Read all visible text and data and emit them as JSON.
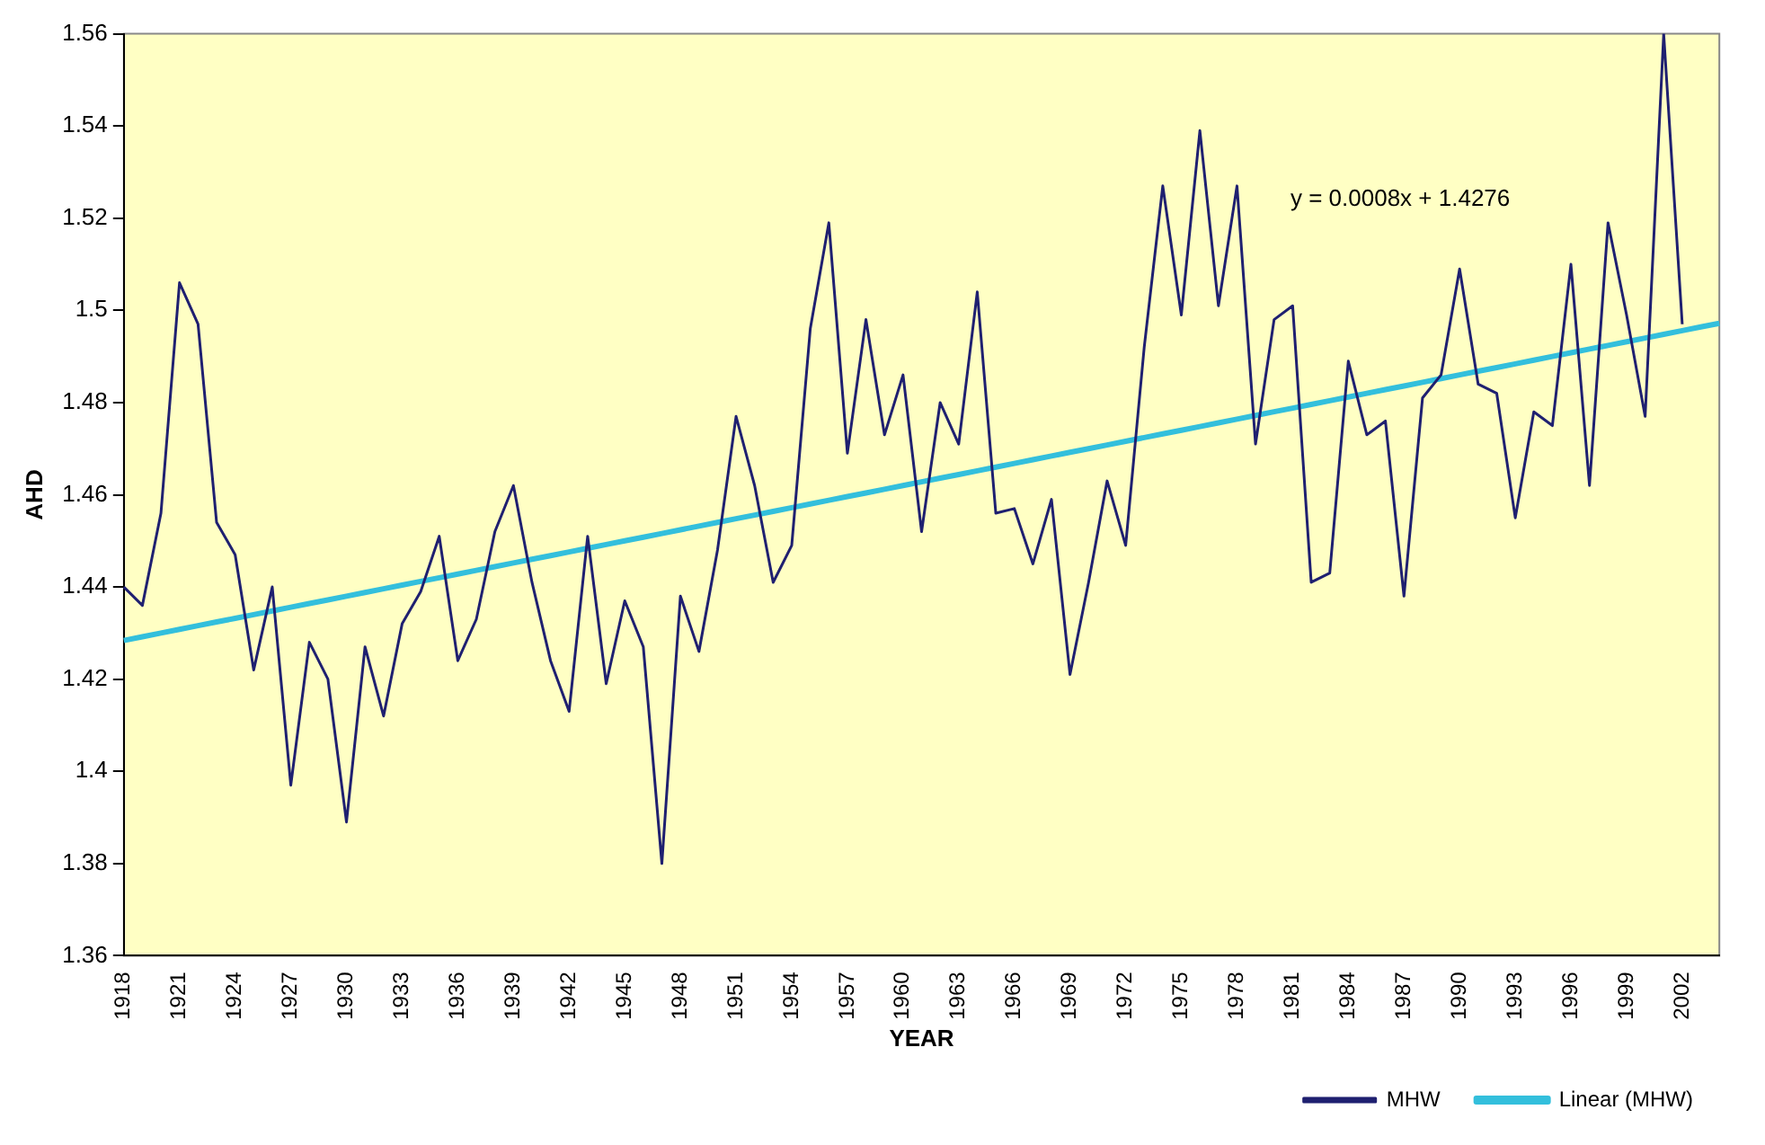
{
  "chart_data": {
    "type": "line",
    "xlabel": "YEAR",
    "ylabel": "AHD",
    "ylim": [
      1.36,
      1.56
    ],
    "yticks": [
      1.36,
      1.38,
      1.4,
      1.42,
      1.44,
      1.46,
      1.48,
      1.5,
      1.52,
      1.54,
      1.56
    ],
    "grid": false,
    "legend": "bottom right",
    "marker": "none",
    "line_style": "solid",
    "annotations": [
      "y = 0.0008x + 1.4276"
    ],
    "categories": [
      "1918",
      null,
      null,
      "1921",
      null,
      null,
      "1924",
      null,
      null,
      "1927",
      null,
      null,
      "1930",
      null,
      null,
      "1933",
      null,
      null,
      "1936",
      null,
      null,
      "1939",
      null,
      null,
      "1942",
      null,
      null,
      "1945",
      null,
      null,
      "1948",
      null,
      null,
      "1951",
      null,
      null,
      "1954",
      null,
      null,
      "1957",
      null,
      null,
      "1960",
      null,
      null,
      "1963",
      null,
      null,
      "1966",
      null,
      null,
      "1969",
      null,
      null,
      "1972",
      null,
      null,
      "1975",
      null,
      null,
      "1978",
      null,
      null,
      "1981",
      null,
      null,
      "1984",
      null,
      null,
      "1987",
      null,
      null,
      "1990",
      null,
      null,
      "1993",
      null,
      null,
      "1996",
      null,
      null,
      "1999",
      null,
      null,
      "2002",
      null,
      null
    ],
    "series": [
      {
        "name": "MHW",
        "color": "#1f2070",
        "values": [
          1.44,
          1.436,
          1.456,
          1.506,
          1.497,
          1.454,
          1.447,
          1.422,
          1.44,
          1.397,
          1.428,
          1.42,
          1.389,
          1.427,
          1.412,
          1.432,
          1.439,
          1.451,
          1.424,
          1.433,
          1.452,
          1.462,
          1.441,
          1.424,
          1.413,
          1.451,
          1.419,
          1.437,
          1.427,
          1.38,
          1.438,
          1.426,
          1.448,
          1.477,
          1.462,
          1.441,
          1.449,
          1.496,
          1.519,
          1.469,
          1.498,
          1.473,
          1.486,
          1.452,
          1.48,
          1.471,
          1.504,
          1.456,
          1.457,
          1.445,
          1.459,
          1.421,
          1.441,
          1.463,
          1.449,
          1.492,
          1.527,
          1.499,
          1.539,
          1.501,
          1.527,
          1.471,
          1.498,
          1.501,
          1.441,
          1.443,
          1.489,
          1.473,
          1.476,
          1.438,
          1.481,
          1.486,
          1.509,
          1.484,
          1.482,
          1.455,
          1.478,
          1.475,
          1.51,
          1.462,
          1.519,
          1.499,
          1.477,
          1.56,
          1.497,
          null,
          null
        ]
      },
      {
        "name": "Linear (MHW)",
        "color": "#33bfdc",
        "values": [
          1.4284,
          1.4292,
          1.43,
          1.4308,
          1.4316,
          1.4324,
          1.4332,
          1.434,
          1.4348,
          1.4356,
          1.4364,
          1.4372,
          1.438,
          1.4388,
          1.4396,
          1.4404,
          1.4412,
          1.442,
          1.4428,
          1.4436,
          1.4444,
          1.4452,
          1.446,
          1.4468,
          1.4476,
          1.4484,
          1.4492,
          1.45,
          1.4508,
          1.4516,
          1.4524,
          1.4532,
          1.454,
          1.4548,
          1.4556,
          1.4564,
          1.4572,
          1.458,
          1.4588,
          1.4596,
          1.4604,
          1.4612,
          1.462,
          1.4628,
          1.4636,
          1.4644,
          1.4652,
          1.466,
          1.4668,
          1.4676,
          1.4684,
          1.4692,
          1.47,
          1.4708,
          1.4716,
          1.4724,
          1.4732,
          1.474,
          1.4748,
          1.4756,
          1.4764,
          1.4772,
          1.478,
          1.4788,
          1.4796,
          1.4804,
          1.4812,
          1.482,
          1.4828,
          1.4836,
          1.4844,
          1.4852,
          1.486,
          1.4868,
          1.4876,
          1.4884,
          1.4892,
          1.49,
          1.4908,
          1.4916,
          1.4924,
          1.4932,
          1.494,
          1.4948,
          1.4956,
          1.4964,
          1.4972
        ]
      }
    ]
  }
}
